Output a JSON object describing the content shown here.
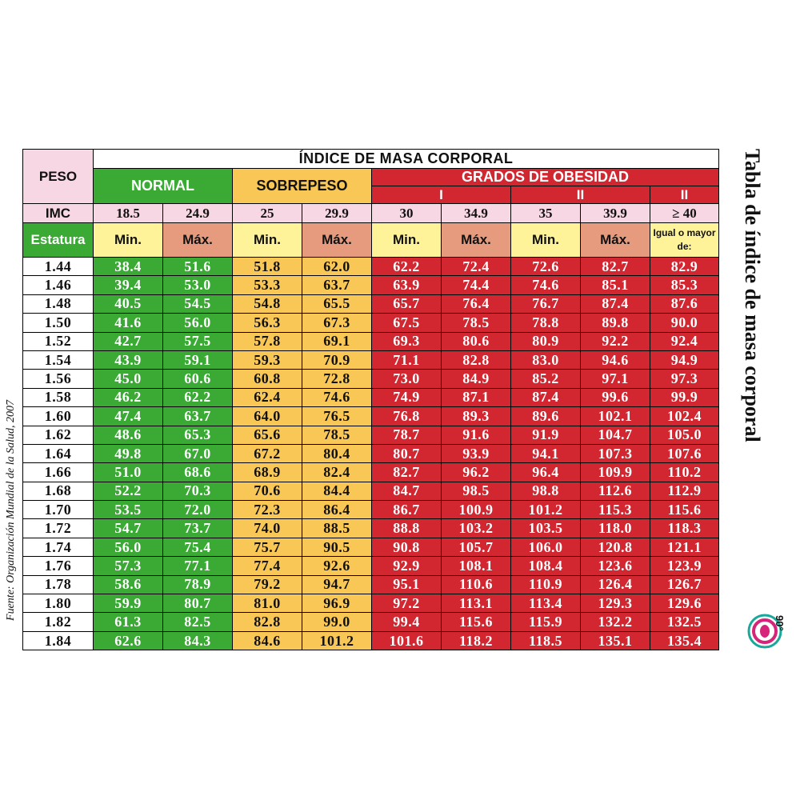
{
  "labels": {
    "peso": "PESO",
    "title": "ÍNDICE DE MASA CORPORAL",
    "normal": "NORMAL",
    "sobrepeso": "SOBREPESO",
    "obesidad": "GRADOS DE OBESIDAD",
    "grade_1": "I",
    "grade_2": "II",
    "grade_3": "II",
    "imc": "IMC",
    "estatura": "Estatura",
    "min": "Min.",
    "max": "Máx.",
    "igual": "Igual o mayor de:"
  },
  "imc_values": [
    "18.5",
    "24.9",
    "25",
    "29.9",
    "30",
    "34.9",
    "35",
    "39.9",
    "≥ 40"
  ],
  "rows": [
    [
      "1.44",
      "38.4",
      "51.6",
      "51.8",
      "62.0",
      "62.2",
      "72.4",
      "72.6",
      "82.7",
      "82.9"
    ],
    [
      "1.46",
      "39.4",
      "53.0",
      "53.3",
      "63.7",
      "63.9",
      "74.4",
      "74.6",
      "85.1",
      "85.3"
    ],
    [
      "1.48",
      "40.5",
      "54.5",
      "54.8",
      "65.5",
      "65.7",
      "76.4",
      "76.7",
      "87.4",
      "87.6"
    ],
    [
      "1.50",
      "41.6",
      "56.0",
      "56.3",
      "67.3",
      "67.5",
      "78.5",
      "78.8",
      "89.8",
      "90.0"
    ],
    [
      "1.52",
      "42.7",
      "57.5",
      "57.8",
      "69.1",
      "69.3",
      "80.6",
      "80.9",
      "92.2",
      "92.4"
    ],
    [
      "1.54",
      "43.9",
      "59.1",
      "59.3",
      "70.9",
      "71.1",
      "82.8",
      "83.0",
      "94.6",
      "94.9"
    ],
    [
      "1.56",
      "45.0",
      "60.6",
      "60.8",
      "72.8",
      "73.0",
      "84.9",
      "85.2",
      "97.1",
      "97.3"
    ],
    [
      "1.58",
      "46.2",
      "62.2",
      "62.4",
      "74.6",
      "74.9",
      "87.1",
      "87.4",
      "99.6",
      "99.9"
    ],
    [
      "1.60",
      "47.4",
      "63.7",
      "64.0",
      "76.5",
      "76.8",
      "89.3",
      "89.6",
      "102.1",
      "102.4"
    ],
    [
      "1.62",
      "48.6",
      "65.3",
      "65.6",
      "78.5",
      "78.7",
      "91.6",
      "91.9",
      "104.7",
      "105.0"
    ],
    [
      "1.64",
      "49.8",
      "67.0",
      "67.2",
      "80.4",
      "80.7",
      "93.9",
      "94.1",
      "107.3",
      "107.6"
    ],
    [
      "1.66",
      "51.0",
      "68.6",
      "68.9",
      "82.4",
      "82.7",
      "96.2",
      "96.4",
      "109.9",
      "110.2"
    ],
    [
      "1.68",
      "52.2",
      "70.3",
      "70.6",
      "84.4",
      "84.7",
      "98.5",
      "98.8",
      "112.6",
      "112.9"
    ],
    [
      "1.70",
      "53.5",
      "72.0",
      "72.3",
      "86.4",
      "86.7",
      "100.9",
      "101.2",
      "115.3",
      "115.6"
    ],
    [
      "1.72",
      "54.7",
      "73.7",
      "74.0",
      "88.5",
      "88.8",
      "103.2",
      "103.5",
      "118.0",
      "118.3"
    ],
    [
      "1.74",
      "56.0",
      "75.4",
      "75.7",
      "90.5",
      "90.8",
      "105.7",
      "106.0",
      "120.8",
      "121.1"
    ],
    [
      "1.76",
      "57.3",
      "77.1",
      "77.4",
      "92.6",
      "92.9",
      "108.1",
      "108.4",
      "123.6",
      "123.9"
    ],
    [
      "1.78",
      "58.6",
      "78.9",
      "79.2",
      "94.7",
      "95.1",
      "110.6",
      "110.9",
      "126.4",
      "126.7"
    ],
    [
      "1.80",
      "59.9",
      "80.7",
      "81.0",
      "96.9",
      "97.2",
      "113.1",
      "113.4",
      "129.3",
      "129.6"
    ],
    [
      "1.82",
      "61.3",
      "82.5",
      "82.8",
      "99.0",
      "99.4",
      "115.6",
      "115.9",
      "132.2",
      "132.5"
    ],
    [
      "1.84",
      "62.6",
      "84.3",
      "84.6",
      "101.2",
      "101.6",
      "118.2",
      "118.5",
      "135.1",
      "135.4"
    ]
  ],
  "side_title": "Tabla de índice de masa corporal",
  "source": "Fuente: Organización Mundial de la Salud, 2007",
  "logo_text": "90°",
  "colors": {
    "normal": "#3aaa35",
    "sobrepeso": "#f9c756",
    "obesidad": "#d22630",
    "header_pink": "#f7d7e3",
    "min_yellow": "#fff399",
    "max_salmon": "#e69a7e",
    "logo_accent": "#d6247a",
    "logo_teal": "#1ba89c"
  }
}
